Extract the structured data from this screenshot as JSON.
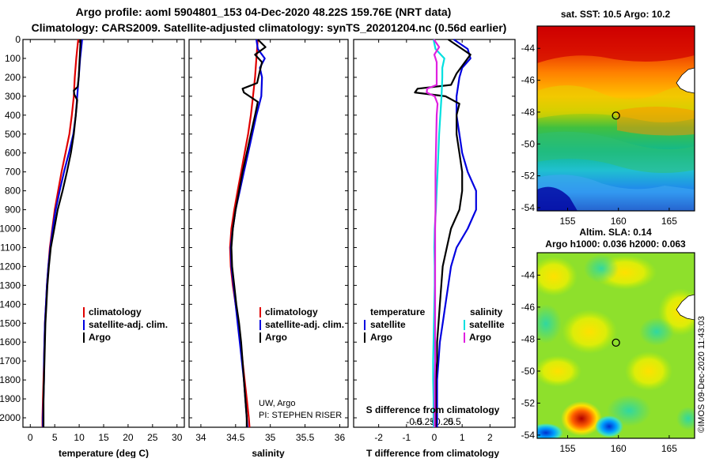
{
  "header": {
    "title_line1": "Argo profile: aoml 5904801_153 04-Dec-2020 48.22S 159.76E (NRT data)",
    "title_line2": "Climatology: CARS2009. Satellite-adjusted climatology: synTS_20201204.nc (0.56d earlier)"
  },
  "watermark": "©IMOS 09-Dec-2020 11:43:03",
  "colors": {
    "red": "#e00000",
    "blue": "#0000e0",
    "black": "#000000",
    "cyan": "#00e0e0",
    "magenta": "#e020e0"
  },
  "depth_axis": {
    "min": 0,
    "max": 2050,
    "ticks": [
      0,
      100,
      200,
      300,
      400,
      500,
      600,
      700,
      800,
      900,
      1000,
      1100,
      1200,
      1300,
      1400,
      1500,
      1600,
      1700,
      1800,
      1900,
      2000
    ]
  },
  "chart_data": [
    {
      "type": "line",
      "id": "temperature",
      "xlabel": "temperature (deg C)",
      "xlim": [
        -1.5,
        31.5
      ],
      "xticks": [
        0,
        5,
        10,
        15,
        20,
        25,
        30
      ],
      "ylim": [
        2050,
        0
      ],
      "legend": {
        "position": "bottom-right",
        "entries": [
          "climatology",
          "satellite-adj. clim.",
          "Argo"
        ]
      },
      "series": [
        {
          "name": "climatology",
          "color": "red",
          "depth": [
            0,
            50,
            100,
            200,
            300,
            400,
            500,
            600,
            700,
            800,
            900,
            1000,
            1100,
            1200,
            1300,
            1400,
            1500,
            1600,
            1700,
            1800,
            1900,
            2000,
            2050
          ],
          "values": [
            9.8,
            9.6,
            9.4,
            9.1,
            8.9,
            8.5,
            8.0,
            7.2,
            6.4,
            5.7,
            5.0,
            4.5,
            4.0,
            3.7,
            3.4,
            3.2,
            3.0,
            2.9,
            2.8,
            2.7,
            2.6,
            2.5,
            2.5
          ]
        },
        {
          "name": "satellite-adj. clim.",
          "color": "blue",
          "depth": [
            0,
            50,
            100,
            200,
            300,
            400,
            500,
            600,
            700,
            800,
            900,
            1000,
            1100,
            1200,
            1300,
            1400,
            1500,
            1600,
            1700,
            1800,
            1900,
            2000,
            2050
          ],
          "values": [
            10.6,
            10.4,
            10.2,
            9.9,
            9.6,
            9.3,
            8.8,
            7.9,
            6.9,
            6.0,
            5.2,
            4.6,
            4.1,
            3.7,
            3.4,
            3.2,
            3.0,
            2.9,
            2.8,
            2.8,
            2.7,
            2.6,
            2.6
          ]
        },
        {
          "name": "Argo",
          "color": "black",
          "depth": [
            0,
            50,
            100,
            200,
            250,
            270,
            290,
            320,
            400,
            500,
            600,
            700,
            800,
            900,
            1000,
            1100,
            1200,
            1300,
            1400,
            1500,
            1600,
            1700,
            1800,
            1900,
            2000,
            2050
          ],
          "values": [
            10.3,
            10.2,
            10.1,
            9.9,
            9.7,
            8.9,
            9.0,
            9.6,
            9.3,
            8.9,
            8.3,
            7.5,
            6.6,
            5.6,
            4.9,
            4.2,
            3.8,
            3.5,
            3.3,
            3.1,
            3.0,
            2.9,
            2.8,
            2.7,
            2.7,
            2.7
          ]
        }
      ]
    },
    {
      "type": "line",
      "id": "salinity",
      "xlabel": "salinity",
      "xlim": [
        33.83,
        36.12
      ],
      "xticks": [
        34,
        34.5,
        35,
        35.5,
        36
      ],
      "ylim": [
        2050,
        0
      ],
      "legend": {
        "position": "bottom-right",
        "entries": [
          "climatology",
          "satellite-adj. clim.",
          "Argo"
        ]
      },
      "notes": [
        "UW, Argo",
        "PI: STEPHEN RISER"
      ],
      "series": [
        {
          "name": "climatology",
          "color": "red",
          "depth": [
            0,
            100,
            200,
            300,
            400,
            500,
            600,
            700,
            800,
            900,
            1000,
            1100,
            1200,
            1300,
            1400,
            1500,
            1600,
            1700,
            1800,
            1900,
            2000,
            2050
          ],
          "values": [
            34.82,
            34.8,
            34.78,
            34.75,
            34.72,
            34.68,
            34.63,
            34.58,
            34.53,
            34.48,
            34.44,
            34.42,
            34.43,
            34.46,
            34.5,
            34.54,
            34.57,
            34.6,
            34.63,
            34.66,
            34.69,
            34.7
          ]
        },
        {
          "name": "satellite-adj. clim.",
          "color": "blue",
          "depth": [
            0,
            50,
            100,
            150,
            200,
            300,
            400,
            500,
            600,
            700,
            800,
            900,
            1000,
            1100,
            1200,
            1300,
            1400,
            1500,
            1600,
            1700,
            1800,
            1900,
            2000,
            2050
          ],
          "values": [
            34.8,
            34.82,
            34.92,
            34.85,
            34.88,
            34.87,
            34.8,
            34.74,
            34.68,
            34.62,
            34.56,
            34.5,
            34.46,
            34.43,
            34.44,
            34.47,
            34.5,
            34.53,
            34.56,
            34.59,
            34.62,
            34.64,
            34.66,
            34.67
          ]
        },
        {
          "name": "Argo",
          "color": "black",
          "depth": [
            0,
            40,
            80,
            120,
            180,
            230,
            260,
            280,
            300,
            330,
            400,
            500,
            600,
            700,
            800,
            900,
            1000,
            1100,
            1200,
            1300,
            1400,
            1500,
            1600,
            1700,
            1800,
            1900,
            2000,
            2050
          ],
          "values": [
            34.82,
            34.93,
            34.78,
            34.88,
            34.84,
            34.81,
            34.6,
            34.62,
            34.7,
            34.82,
            34.78,
            34.72,
            34.66,
            34.6,
            34.55,
            34.5,
            34.46,
            34.44,
            34.45,
            34.48,
            34.51,
            34.55,
            34.58,
            34.6,
            34.62,
            34.64,
            34.66,
            34.66
          ]
        }
      ]
    },
    {
      "type": "line",
      "id": "difference",
      "xlabel": "T difference from climatology",
      "xlabel2": "S difference from climatology",
      "xlim": [
        -2.9,
        2.9
      ],
      "xticks": [
        -2,
        -1,
        0,
        1,
        2
      ],
      "xticks2": [
        -0.5,
        -0.25,
        0,
        0.25,
        0.5
      ],
      "xticks2_labels": [
        "-0.5",
        "-0.25",
        "0",
        "0.25",
        "0.5"
      ],
      "ylim": [
        2050,
        0
      ],
      "legend": {
        "position": "bottom",
        "temperature_header": "temperature",
        "salinity_header": "salinity",
        "entries": [
          "satellite",
          "Argo",
          "satellite",
          "Argo"
        ]
      },
      "series": [
        {
          "name": "satellite",
          "quantity": "T",
          "color": "blue",
          "depth": [
            0,
            50,
            100,
            150,
            200,
            300,
            400,
            500,
            600,
            700,
            800,
            900,
            1000,
            1100,
            1200,
            1300,
            1400,
            1500,
            1600,
            1700,
            1800,
            1900,
            2000,
            2050
          ],
          "values": [
            0.7,
            1.2,
            1.3,
            1.0,
            0.9,
            0.8,
            0.8,
            0.9,
            1.0,
            1.2,
            1.5,
            1.5,
            1.2,
            0.8,
            0.6,
            0.5,
            0.4,
            0.3,
            0.2,
            0.15,
            0.1,
            0.1,
            0.1,
            0.1
          ]
        },
        {
          "name": "Argo",
          "quantity": "T",
          "color": "black",
          "depth": [
            0,
            40,
            80,
            120,
            180,
            240,
            260,
            280,
            300,
            340,
            400,
            500,
            600,
            700,
            800,
            900,
            1000,
            1100,
            1200,
            1300,
            1400,
            1500,
            1600,
            1700,
            1800,
            1900,
            2000,
            2050
          ],
          "values": [
            0.5,
            0.9,
            1.3,
            1.1,
            0.8,
            0.6,
            -0.6,
            -0.7,
            0.4,
            0.9,
            0.8,
            0.8,
            0.9,
            1.0,
            1.0,
            0.9,
            0.6,
            0.45,
            0.3,
            0.25,
            0.2,
            0.15,
            0.1,
            0.1,
            0.05,
            0.05,
            0.05,
            0.05
          ]
        },
        {
          "name": "satellite",
          "quantity": "S",
          "color": "cyan",
          "depth": [
            0,
            50,
            100,
            150,
            200,
            300,
            400,
            500,
            600,
            700,
            800,
            900,
            1000,
            1100,
            1200,
            1300,
            1400,
            1500,
            1600,
            1700,
            1800,
            1900,
            2000,
            2050
          ],
          "values": [
            -0.02,
            0.03,
            0.25,
            0.2,
            0.2,
            0.18,
            0.15,
            0.12,
            0.1,
            0.08,
            0.06,
            0.04,
            0.01,
            0.0,
            0.01,
            0.01,
            0.0,
            -0.01,
            -0.02,
            -0.03,
            -0.03,
            -0.02,
            -0.02,
            -0.02
          ]
        },
        {
          "name": "Argo",
          "quantity": "S",
          "color": "magenta",
          "depth": [
            0,
            40,
            80,
            120,
            180,
            240,
            260,
            280,
            300,
            340,
            400,
            500,
            600,
            700,
            800,
            900,
            1000,
            1100,
            1200,
            1300,
            1400,
            1500,
            1600,
            1700,
            1800,
            1900,
            2000,
            2050
          ],
          "values": [
            -0.01,
            0.12,
            0.0,
            0.06,
            0.06,
            0.06,
            -0.18,
            -0.19,
            0.01,
            0.08,
            0.06,
            0.05,
            0.04,
            0.03,
            0.03,
            0.03,
            0.02,
            0.02,
            0.02,
            0.02,
            0.02,
            0.02,
            0.02,
            0.02,
            0.01,
            0.01,
            0.01,
            0.01
          ]
        }
      ]
    },
    {
      "type": "heatmap",
      "id": "sst_map",
      "title": "sat. SST: 10.5 Argo: 10.2",
      "xlim": [
        152,
        167.5
      ],
      "ylim": [
        -54.2,
        -42.6
      ],
      "xticks": [
        155,
        160,
        165
      ],
      "yticks": [
        -44,
        -46,
        -48,
        -50,
        -52,
        -54
      ],
      "marker": {
        "lon": 159.76,
        "lat": -48.22
      }
    },
    {
      "type": "heatmap",
      "id": "sla_map",
      "title": "Altim. SLA: 0.14",
      "title2": "Argo h1000: 0.036 h2000: 0.063",
      "xlim": [
        152,
        167.5
      ],
      "ylim": [
        -54.2,
        -42.6
      ],
      "xticks": [
        155,
        160,
        165
      ],
      "yticks": [
        -44,
        -46,
        -48,
        -50,
        -52,
        -54
      ],
      "marker": {
        "lon": 159.76,
        "lat": -48.22
      }
    }
  ]
}
